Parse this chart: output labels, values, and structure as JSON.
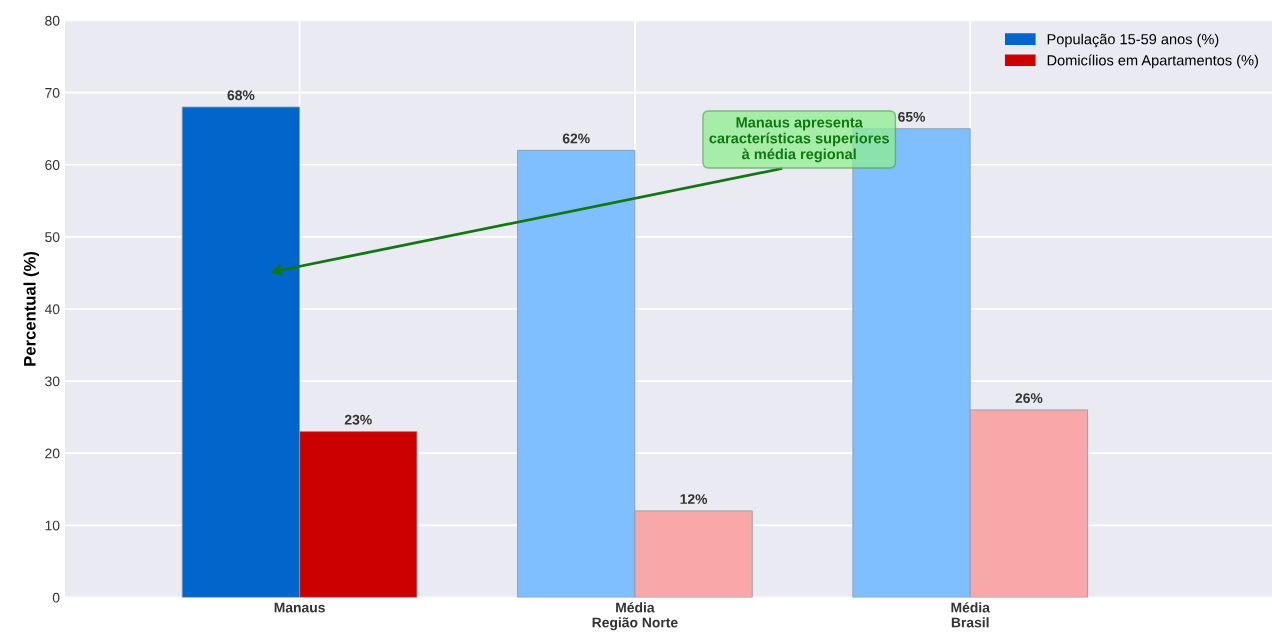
{
  "chart_data": {
    "type": "bar",
    "ylabel": "Percentual (%)",
    "categories": [
      "Manaus",
      "Média\nRegião Norte",
      "Média\nBrasil"
    ],
    "series": [
      {
        "name": "População 15-59 anos (%)",
        "color": "#0066cc",
        "colors": [
          "#0066cc",
          "#80bfff",
          "#80bfff"
        ],
        "values": [
          68,
          62,
          65
        ],
        "value_labels": [
          "68%",
          "62%",
          "65%"
        ]
      },
      {
        "name": "Domicílios em Apartamentos (%)",
        "color": "#cc0000",
        "colors": [
          "#cc0000",
          "#f8a8a8",
          "#f8a8a8"
        ],
        "values": [
          23,
          12,
          26
        ],
        "value_labels": [
          "23%",
          "12%",
          "26%"
        ]
      }
    ],
    "ylim": [
      0,
      80
    ],
    "yticks": [
      0,
      10,
      20,
      30,
      40,
      50,
      60,
      70,
      80
    ],
    "grid": true,
    "legend": "top right",
    "annotations": [
      "Manaus apresenta\ncaracterísticas superiores\nà média regional"
    ]
  }
}
